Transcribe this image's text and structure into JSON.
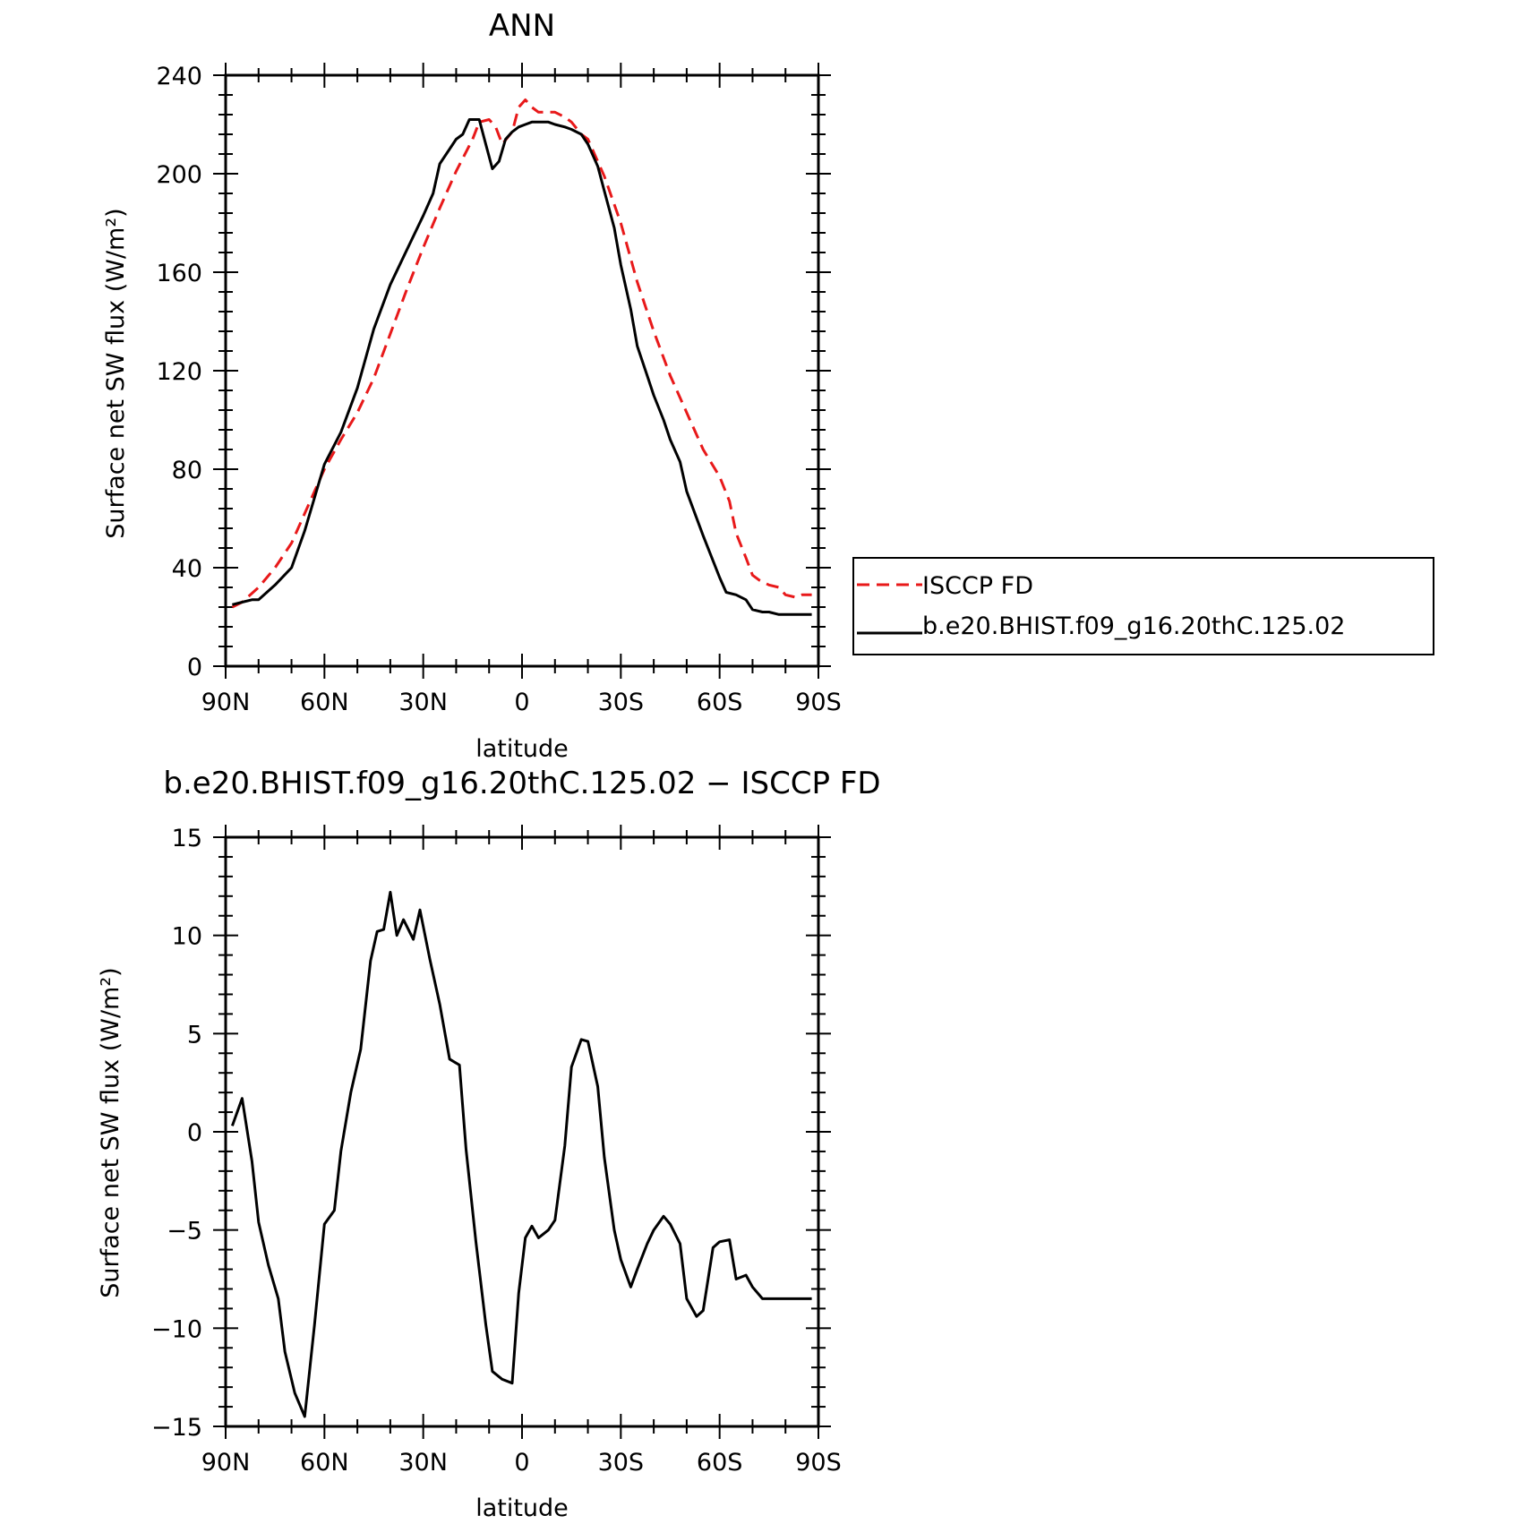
{
  "chart_data": [
    {
      "type": "line",
      "title": "ANN",
      "xlabel": "latitude",
      "ylabel": "Surface net SW flux (W/m²)",
      "xlim": [
        -90,
        90
      ],
      "ylim": [
        0,
        240
      ],
      "x_tick_labels": [
        "90N",
        "60N",
        "30N",
        "0",
        "30S",
        "60S",
        "90S"
      ],
      "x_tick_values": [
        -90,
        -60,
        -30,
        0,
        30,
        60,
        90
      ],
      "y_tick_values": [
        0,
        40,
        80,
        120,
        160,
        200,
        240
      ],
      "y_tick_labels": [
        "0",
        "40",
        "80",
        "120",
        "160",
        "200",
        "240"
      ],
      "legend_position": "right-middle",
      "series": [
        {
          "name": "ISCCP FD",
          "color": "#e8191a",
          "dash": "dashed",
          "x": [
            -88,
            -85,
            -80,
            -75,
            -70,
            -65,
            -60,
            -55,
            -50,
            -45,
            -40,
            -35,
            -30,
            -25,
            -20,
            -15,
            -13,
            -10,
            -8,
            -6,
            -3,
            -1,
            1,
            3,
            5,
            8,
            10,
            13,
            15,
            18,
            20,
            25,
            30,
            35,
            40,
            45,
            50,
            55,
            60,
            63,
            65,
            68,
            70,
            72,
            75,
            78,
            80,
            83,
            85,
            88
          ],
          "y": [
            24,
            26,
            32,
            40,
            50,
            65,
            80,
            92,
            103,
            117,
            135,
            153,
            170,
            186,
            201,
            214,
            221,
            222,
            219,
            212,
            217,
            227,
            230,
            227,
            225,
            225,
            225,
            223,
            221,
            216,
            214,
            199,
            180,
            156,
            136,
            118,
            103,
            88,
            77,
            67,
            54,
            44,
            37,
            35,
            33,
            32,
            29,
            28,
            29,
            29
          ]
        },
        {
          "name": "b.e20.BHIST.f09_g16.20thC.125.02",
          "color": "#000000",
          "dash": "solid",
          "x": [
            -88,
            -85,
            -82,
            -80,
            -75,
            -70,
            -66,
            -60,
            -55,
            -50,
            -45,
            -40,
            -35,
            -30,
            -27,
            -25,
            -22,
            -20,
            -18,
            -16,
            -15,
            -13,
            -11,
            -9,
            -7,
            -5,
            -3,
            -1,
            1,
            3,
            5,
            8,
            10,
            13,
            15,
            18,
            20,
            23,
            25,
            28,
            30,
            33,
            35,
            38,
            40,
            43,
            45,
            48,
            50,
            55,
            60,
            62,
            65,
            68,
            70,
            73,
            75,
            78,
            80,
            83,
            85,
            88
          ],
          "y": [
            25,
            26,
            27,
            27,
            33,
            40,
            55,
            82,
            95,
            113,
            137,
            155,
            169,
            183,
            192,
            204,
            210,
            214,
            216,
            222,
            222,
            222,
            212,
            202,
            205,
            214,
            217,
            219,
            220,
            221,
            221,
            221,
            220,
            219,
            218,
            216,
            212,
            203,
            193,
            178,
            163,
            145,
            130,
            118,
            110,
            100,
            92,
            83,
            71,
            53,
            36,
            30,
            29,
            27,
            23,
            22,
            22,
            21,
            21,
            21,
            21,
            21
          ]
        }
      ]
    },
    {
      "type": "line",
      "title": "b.e20.BHIST.f09_g16.20thC.125.02 − ISCCP FD",
      "xlabel": "latitude",
      "ylabel": "Surface net SW flux (W/m²)",
      "xlim": [
        -90,
        90
      ],
      "ylim": [
        -15,
        15
      ],
      "x_tick_labels": [
        "90N",
        "60N",
        "30N",
        "0",
        "30S",
        "60S",
        "90S"
      ],
      "x_tick_values": [
        -90,
        -60,
        -30,
        0,
        30,
        60,
        90
      ],
      "y_tick_values": [
        -15,
        -10,
        -5,
        0,
        5,
        10,
        15
      ],
      "y_tick_labels": [
        "−15",
        "−10",
        "−5",
        "0",
        "5",
        "10",
        "15"
      ],
      "series": [
        {
          "color": "#000000",
          "dash": "solid",
          "x": [
            -88,
            -85,
            -82,
            -80,
            -77,
            -74,
            -72,
            -69,
            -66,
            -63,
            -60,
            -57,
            -55,
            -52,
            -49,
            -46,
            -44,
            -42,
            -40,
            -38,
            -36,
            -33,
            -31,
            -28,
            -25,
            -22,
            -19,
            -17,
            -14,
            -11,
            -9,
            -6,
            -3,
            -1,
            1,
            3,
            5,
            8,
            10,
            13,
            15,
            18,
            20,
            23,
            25,
            28,
            30,
            33,
            35,
            38,
            40,
            43,
            45,
            48,
            50,
            53,
            55,
            58,
            60,
            63,
            65,
            68,
            70,
            73,
            75,
            78,
            80,
            83,
            85,
            88
          ],
          "y": [
            0.3,
            1.7,
            -1.5,
            -4.6,
            -6.8,
            -8.5,
            -11.2,
            -13.3,
            -14.5,
            -9.8,
            -4.7,
            -4.0,
            -1.0,
            2.0,
            4.2,
            8.7,
            10.2,
            10.3,
            12.2,
            10.0,
            10.8,
            9.8,
            11.3,
            8.8,
            6.5,
            3.7,
            3.4,
            -0.9,
            -5.6,
            -9.8,
            -12.2,
            -12.6,
            -12.8,
            -8.2,
            -5.4,
            -4.8,
            -5.4,
            -5.0,
            -4.5,
            -0.7,
            3.3,
            4.7,
            4.6,
            2.3,
            -1.3,
            -5.0,
            -6.5,
            -7.9,
            -7.0,
            -5.7,
            -5.0,
            -4.3,
            -4.7,
            -5.7,
            -8.5,
            -9.4,
            -9.1,
            -5.9,
            -5.6,
            -5.5,
            -7.5,
            -7.3,
            -7.9,
            -8.5,
            -8.5,
            -8.5,
            -8.5,
            -8.5,
            -8.5,
            -8.5
          ]
        }
      ]
    }
  ]
}
